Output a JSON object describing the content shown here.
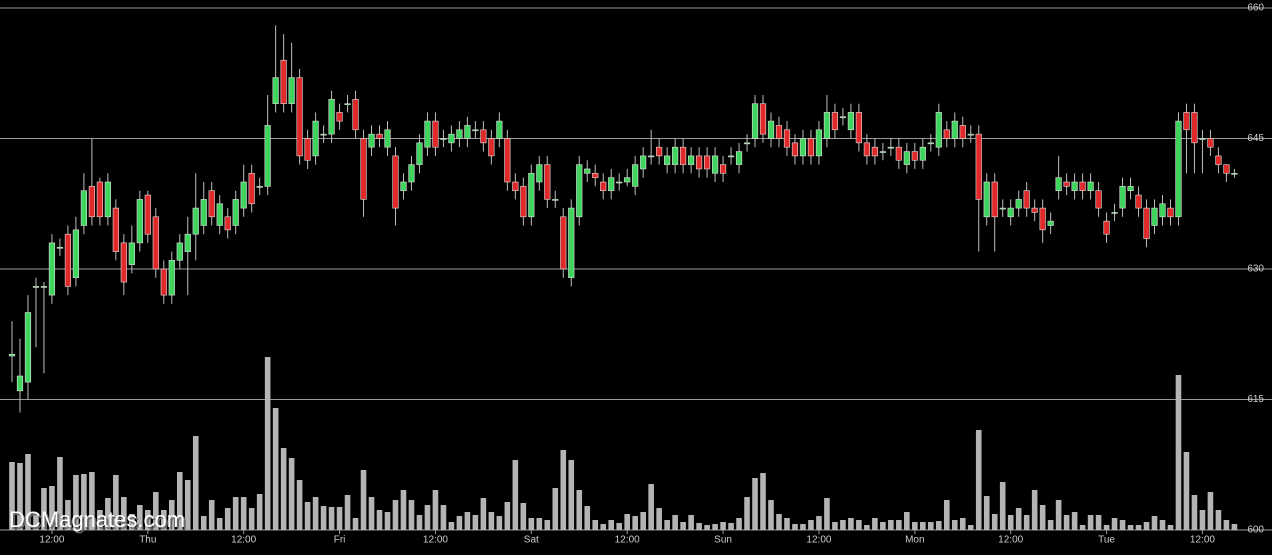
{
  "chart_data": {
    "type": "candlestick",
    "watermark": "DCMagnates.com",
    "up_color": "#3fd45c",
    "down_color": "#e02a2a",
    "volume_color": "#b4b4b4",
    "grid": true,
    "ylim": [
      600,
      660
    ],
    "yticks": [
      600,
      615,
      630,
      645,
      660
    ],
    "xlim": [
      -1.5,
      153.7
    ],
    "xticks": [
      {
        "value": 5,
        "label": "12:00"
      },
      {
        "value": 17,
        "label": "Thu"
      },
      {
        "value": 29,
        "label": "12:00"
      },
      {
        "value": 41,
        "label": "Fri"
      },
      {
        "value": 53,
        "label": "12:00"
      },
      {
        "value": 65,
        "label": "Sat"
      },
      {
        "value": 77,
        "label": "12:00"
      },
      {
        "value": 89,
        "label": "Sun"
      },
      {
        "value": 101,
        "label": "12:00"
      },
      {
        "value": 113,
        "label": "Mon"
      },
      {
        "value": 125,
        "label": "12:00"
      },
      {
        "value": 137,
        "label": "Tue"
      },
      {
        "value": 149,
        "label": "12:00"
      }
    ],
    "open": [
      620,
      616,
      617,
      628,
      628,
      627,
      632.5,
      634,
      629,
      635,
      639.5,
      640,
      636,
      637,
      633,
      630.5,
      633,
      638.5,
      636,
      630,
      627,
      631,
      632,
      634,
      635,
      639,
      635,
      636,
      635,
      637,
      641,
      639.5,
      639.5,
      649,
      654,
      649,
      652,
      645,
      643,
      645.5,
      645.5,
      648,
      649,
      649.5,
      645,
      644,
      645.5,
      644,
      643,
      639,
      640,
      642,
      644,
      647,
      645,
      644.5,
      645,
      645,
      646,
      646,
      645,
      645,
      645,
      640,
      639.5,
      636,
      640,
      642,
      638,
      636,
      629,
      636,
      641,
      641,
      640,
      639,
      640,
      640,
      639.5,
      641.5,
      643,
      644,
      642,
      642,
      644,
      642,
      643,
      643,
      641,
      642,
      643,
      642,
      644.5,
      645,
      649,
      645,
      646.5,
      646,
      644.5,
      643,
      645,
      643,
      645,
      648,
      647.5,
      646,
      648,
      644.5,
      644,
      643.5,
      644,
      644,
      642,
      643.5,
      642.5,
      644.5,
      644,
      646,
      645,
      646.5,
      645.5,
      645.5,
      636,
      640,
      637,
      636,
      637,
      639,
      637,
      637,
      635,
      639,
      640,
      639,
      640,
      639,
      639,
      635.5,
      636.5,
      637,
      639,
      638.5,
      637,
      635,
      636,
      637,
      636,
      648,
      648,
      645,
      645,
      643,
      642,
      641
    ],
    "high": [
      624,
      622,
      627,
      629,
      628.5,
      634,
      633.5,
      635,
      636,
      641,
      645,
      640.5,
      641,
      638,
      634,
      635,
      639,
      639,
      637,
      631,
      632,
      634,
      636,
      641,
      640,
      640,
      638.5,
      637,
      639,
      642,
      642,
      640.5,
      650,
      658,
      657,
      656,
      653,
      646,
      648,
      646.5,
      650.5,
      649,
      650,
      650.5,
      646,
      646.5,
      646.5,
      647,
      644,
      641,
      643,
      645.5,
      648,
      648,
      646,
      646.5,
      647,
      647.5,
      647,
      647,
      646,
      648,
      646,
      641,
      640.5,
      642,
      643,
      643,
      639,
      637,
      638,
      643,
      642.5,
      642,
      641,
      641.5,
      641,
      641.5,
      643,
      644,
      646,
      645,
      644,
      645,
      645,
      644,
      644,
      644,
      644,
      643,
      644,
      644.5,
      645.5,
      650,
      650,
      648,
      647.5,
      647,
      645.5,
      646,
      646,
      647,
      650,
      649,
      648.5,
      649,
      649,
      645.5,
      645,
      644.5,
      645,
      645,
      644.5,
      644.5,
      645,
      645.5,
      649,
      647,
      648,
      647.5,
      646.5,
      646.5,
      641,
      641,
      638,
      638,
      639,
      640,
      638,
      638,
      636.5,
      643,
      641,
      641,
      641,
      641,
      640,
      636.5,
      637.5,
      640.5,
      640.5,
      639.5,
      638,
      638,
      638.5,
      638,
      648,
      649,
      649,
      646,
      646,
      644,
      642,
      641.5
    ],
    "low": [
      617,
      613.5,
      615,
      621,
      618,
      626,
      631.5,
      627,
      628,
      634,
      635,
      635,
      635,
      631,
      627,
      629.5,
      632,
      633,
      629,
      626,
      626,
      630,
      627,
      631,
      634,
      635,
      634,
      633.5,
      634,
      636,
      636.5,
      638.5,
      638.5,
      648,
      648,
      648,
      642,
      641.5,
      642,
      644.5,
      644.5,
      646,
      648,
      645,
      636,
      643,
      644,
      643,
      635,
      638,
      639,
      641,
      643,
      643,
      644,
      643.5,
      644,
      644,
      645,
      643.5,
      642,
      644,
      639,
      638,
      635,
      635,
      639,
      637,
      637,
      629,
      628,
      635,
      640,
      639.5,
      638,
      638,
      639,
      639.5,
      638.5,
      640.5,
      642,
      642,
      641,
      641,
      641,
      641,
      640.5,
      640.5,
      640,
      640,
      642,
      641,
      643.5,
      644,
      644.5,
      644,
      644,
      643,
      642,
      642,
      642,
      642,
      644,
      645,
      646.5,
      645,
      643.5,
      642,
      642,
      642.5,
      643,
      641.5,
      641,
      641.5,
      641.5,
      643.5,
      643,
      644,
      644,
      644,
      644.5,
      632,
      635,
      632,
      636,
      635,
      636,
      636,
      635.5,
      633,
      634,
      638,
      638.5,
      638,
      638,
      638,
      636,
      633,
      635.5,
      636,
      638,
      636,
      632.5,
      634,
      635,
      635,
      635,
      641,
      641,
      641,
      643,
      641,
      640,
      640.5
    ],
    "close": [
      620.2,
      617.7,
      625,
      628,
      628,
      633,
      632.5,
      628,
      634.5,
      639,
      636,
      636,
      640,
      632,
      628.5,
      633,
      638,
      634,
      630,
      627,
      631,
      633,
      634,
      637,
      638,
      636,
      637.5,
      634.5,
      638,
      640,
      637.5,
      639.5,
      646.5,
      652,
      649,
      652,
      643,
      642.5,
      647,
      645.5,
      649.5,
      647,
      649,
      646,
      638,
      645.5,
      645,
      646,
      637,
      640,
      642,
      644.5,
      647,
      644,
      645,
      645.5,
      646,
      646.5,
      646,
      644.5,
      643,
      647,
      640,
      639,
      636,
      641,
      642,
      638,
      638,
      630,
      637,
      642,
      641.5,
      640.5,
      639,
      640.5,
      640,
      640.5,
      642,
      643,
      643,
      643,
      643,
      644,
      642,
      643,
      641.5,
      641.5,
      643,
      641,
      643,
      643.5,
      644.5,
      649,
      645.5,
      647,
      645,
      644,
      643,
      645,
      643,
      646,
      648,
      646,
      647.5,
      648,
      644.5,
      643,
      643,
      643.5,
      644,
      642.5,
      643.5,
      642.5,
      644,
      644.5,
      648,
      645,
      647,
      645,
      645.5,
      638,
      640,
      636,
      637,
      637,
      638,
      637,
      636.5,
      634.5,
      635.5,
      640.5,
      639.5,
      640,
      639,
      640,
      637,
      634,
      636.5,
      639.5,
      639.5,
      637,
      633.5,
      637,
      637.5,
      636,
      647,
      646,
      644.5,
      645,
      644,
      642,
      641,
      641
    ],
    "volume": [
      68,
      67,
      76,
      17,
      42,
      44,
      73,
      30,
      55,
      56,
      58,
      20,
      32,
      55,
      33,
      16,
      25,
      20,
      38,
      20,
      30,
      58,
      50,
      94,
      14,
      30,
      12,
      22,
      33,
      33,
      22,
      36,
      173,
      122,
      82,
      72,
      50,
      28,
      33,
      24,
      23,
      23,
      35,
      12,
      60,
      33,
      20,
      18,
      30,
      40,
      30,
      15,
      25,
      40,
      25,
      8,
      14,
      18,
      15,
      32,
      18,
      14,
      28,
      70,
      27,
      12,
      12,
      10,
      42,
      80,
      70,
      40,
      24,
      10,
      6,
      10,
      7,
      16,
      14,
      18,
      46,
      22,
      10,
      15,
      8,
      15,
      7,
      5,
      6,
      8,
      7,
      12,
      33,
      52,
      57,
      30,
      16,
      12,
      6,
      6,
      10,
      14,
      32,
      8,
      10,
      12,
      10,
      5,
      12,
      8,
      10,
      10,
      18,
      8,
      8,
      8,
      9,
      30,
      10,
      12,
      5,
      100,
      34,
      16,
      48,
      15,
      22,
      15,
      40,
      25,
      10,
      30,
      15,
      18,
      5,
      15,
      15,
      5,
      12,
      10,
      5,
      5,
      8,
      14,
      10,
      5,
      155,
      78,
      35,
      20,
      38,
      20,
      10,
      6
    ]
  }
}
